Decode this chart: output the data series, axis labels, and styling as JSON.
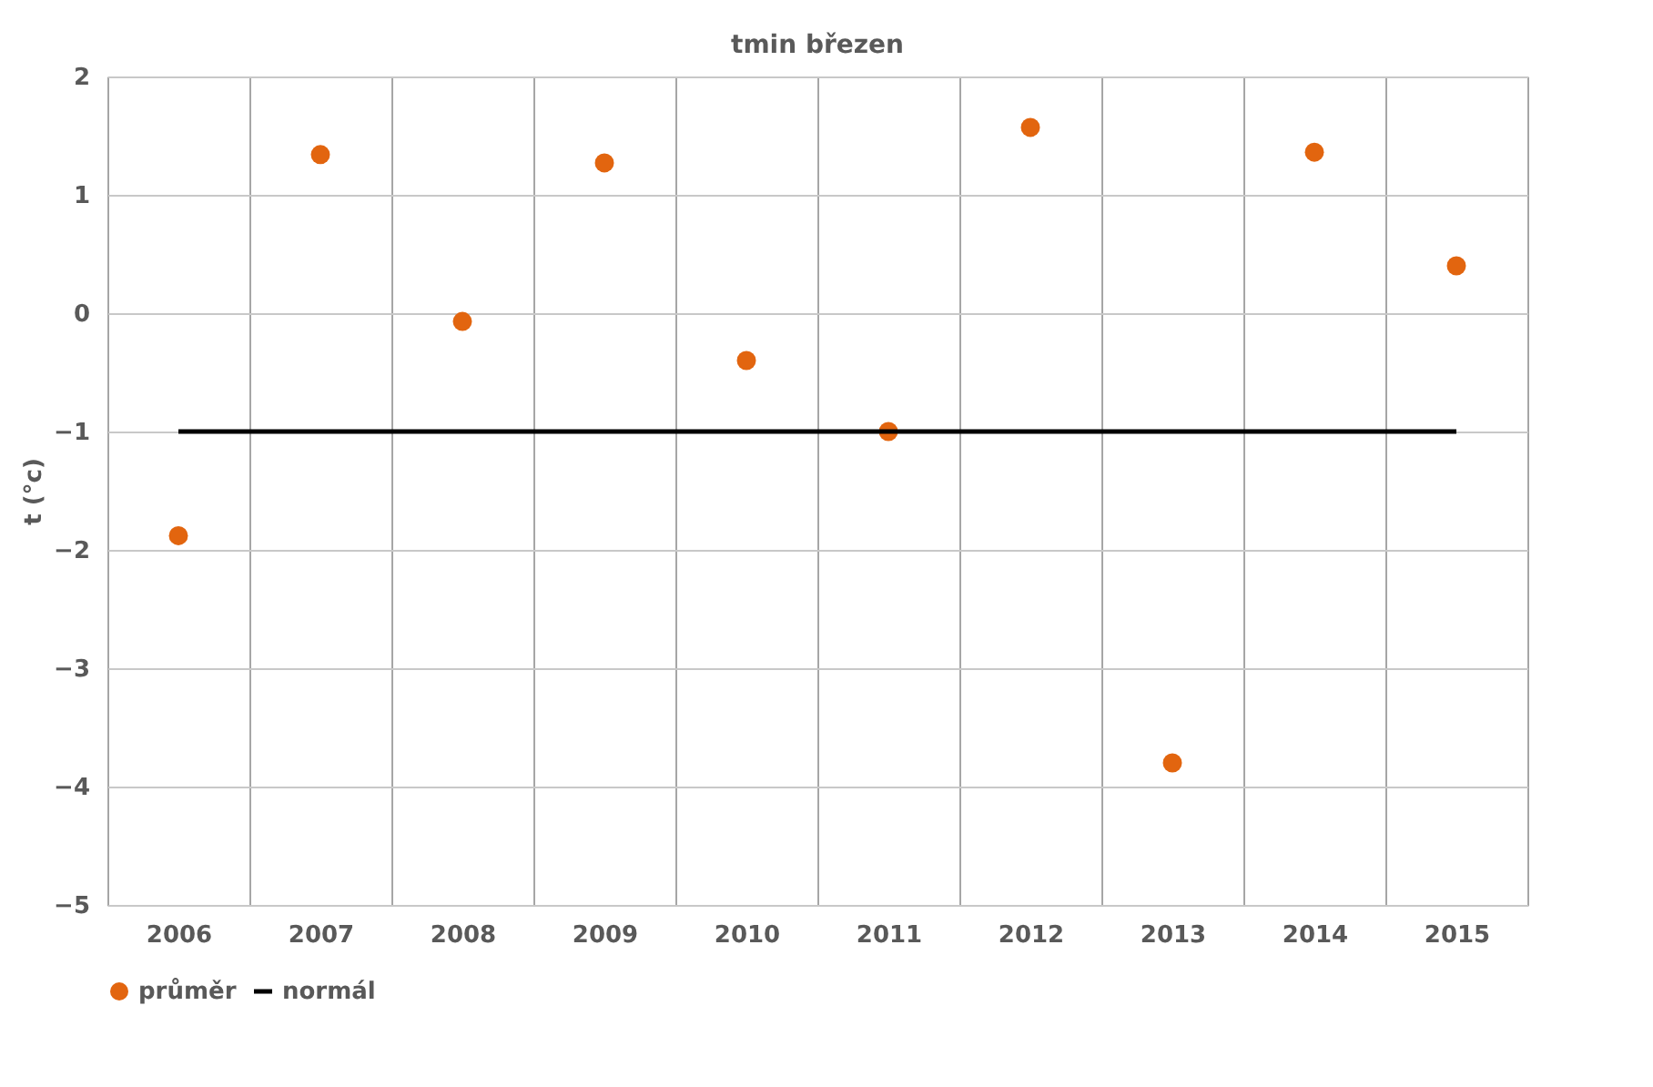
{
  "chart_data": {
    "type": "scatter",
    "title": "tmin březen",
    "ylabel": "t (°c)",
    "categories": [
      "2006",
      "2007",
      "2008",
      "2009",
      "2010",
      "2011",
      "2012",
      "2013",
      "2014",
      "2015"
    ],
    "series": [
      {
        "name": "průměr",
        "type": "scatter",
        "color": "#e2650f",
        "marker": "circle",
        "values": [
          -1.88,
          1.34,
          -0.07,
          1.27,
          -0.4,
          -1.0,
          1.57,
          -3.8,
          1.36,
          0.4
        ]
      },
      {
        "name": "normál",
        "type": "line",
        "color": "#000000",
        "line_style": "solid",
        "marker": "none",
        "values": [
          -1.0,
          -1.0,
          -1.0,
          -1.0,
          -1.0,
          -1.0,
          -1.0,
          -1.0,
          -1.0,
          -1.0
        ]
      }
    ],
    "ylim": [
      -5,
      2
    ],
    "yticks": [
      -5,
      -4,
      -3,
      -2,
      -1,
      0,
      1,
      2
    ],
    "grid": true,
    "legend": "bottom"
  }
}
